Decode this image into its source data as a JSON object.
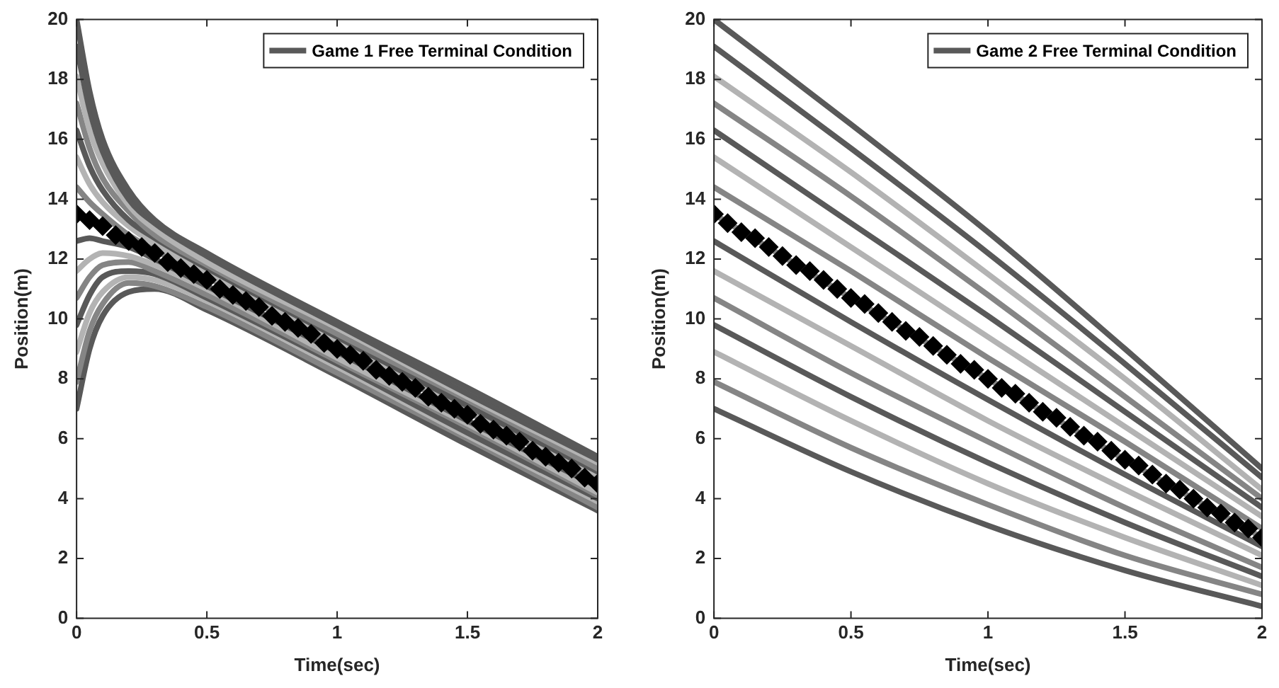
{
  "chart_data": [
    {
      "type": "line",
      "xlabel": "Time(sec)",
      "ylabel": "Position(m)",
      "x": [
        0,
        0.05,
        0.1,
        0.2,
        0.3,
        0.5,
        1,
        1.5,
        2
      ],
      "xlim": [
        0,
        2
      ],
      "xticks": [
        0,
        0.5,
        1,
        1.5,
        2
      ],
      "ylim": [
        0,
        20
      ],
      "yticks": [
        0,
        2,
        4,
        6,
        8,
        10,
        12,
        14,
        16,
        18,
        20
      ],
      "legend": "top right",
      "marker": "none",
      "line_style": "solid",
      "series": [
        {
          "name": "Game 1 Free Terminal Condition",
          "color": "#595959",
          "values": [
            20,
            17.6,
            16.0,
            14.3,
            13.3,
            12.2,
            9.9,
            7.7,
            5.4
          ]
        },
        {
          "color": "#595959",
          "values": [
            19.1,
            17.0,
            15.6,
            14.0,
            13.2,
            12.1,
            9.8,
            7.5,
            5.3
          ]
        },
        {
          "color": "#b3b3b3",
          "values": [
            18.1,
            16.3,
            15.2,
            13.8,
            13.0,
            11.9,
            9.7,
            7.4,
            5.2
          ]
        },
        {
          "color": "#858585",
          "values": [
            17.2,
            15.7,
            14.7,
            13.6,
            12.8,
            11.8,
            9.5,
            7.3,
            5.0
          ]
        },
        {
          "color": "#595959",
          "values": [
            16.3,
            15.1,
            14.3,
            13.3,
            12.7,
            11.7,
            9.4,
            7.1,
            4.9
          ]
        },
        {
          "color": "#b3b3b3",
          "values": [
            15.4,
            14.5,
            13.9,
            13.1,
            12.5,
            11.5,
            9.3,
            7.0,
            4.8
          ]
        },
        {
          "color": "#858585",
          "values": [
            14.4,
            13.9,
            13.5,
            12.8,
            12.3,
            11.4,
            9.1,
            6.9,
            4.6
          ]
        },
        {
          "color": "#595959",
          "values": [
            12.6,
            12.7,
            12.6,
            12.4,
            12.0,
            11.1,
            8.9,
            6.6,
            4.4
          ]
        },
        {
          "color": "#b3b3b3",
          "values": [
            11.6,
            12.0,
            12.2,
            12.1,
            11.8,
            11.0,
            8.7,
            6.5,
            4.2
          ]
        },
        {
          "color": "#858585",
          "values": [
            10.7,
            11.4,
            11.8,
            11.9,
            11.6,
            10.8,
            8.6,
            6.4,
            4.1
          ]
        },
        {
          "color": "#595959",
          "values": [
            9.8,
            10.8,
            11.4,
            11.6,
            11.5,
            10.7,
            8.5,
            6.2,
            4.0
          ]
        },
        {
          "color": "#b3b3b3",
          "values": [
            8.9,
            10.2,
            10.9,
            11.4,
            11.3,
            10.6,
            8.4,
            6.1,
            3.9
          ]
        },
        {
          "color": "#858585",
          "values": [
            7.9,
            9.6,
            10.5,
            11.2,
            11.1,
            10.4,
            8.2,
            6.0,
            3.7
          ]
        },
        {
          "color": "#595959",
          "values": [
            7.0,
            9.0,
            10.1,
            10.9,
            11.0,
            10.3,
            8.1,
            5.8,
            3.6
          ]
        },
        {
          "type": "scatter",
          "marker": "diamond",
          "color": "#000000",
          "x": [
            0,
            0.05,
            0.1,
            0.15,
            0.2,
            0.25,
            0.3,
            0.35,
            0.4,
            0.45,
            0.5,
            0.55,
            0.6,
            0.65,
            0.7,
            0.75,
            0.8,
            0.85,
            0.9,
            0.95,
            1,
            1.05,
            1.1,
            1.15,
            1.2,
            1.25,
            1.3,
            1.35,
            1.4,
            1.45,
            1.5,
            1.55,
            1.6,
            1.65,
            1.7,
            1.75,
            1.8,
            1.85,
            1.9,
            1.95,
            2
          ],
          "values": [
            13.5,
            13.3,
            13.1,
            12.8,
            12.6,
            12.4,
            12.2,
            11.9,
            11.7,
            11.5,
            11.3,
            11.0,
            10.8,
            10.6,
            10.4,
            10.1,
            9.9,
            9.7,
            9.5,
            9.2,
            9.0,
            8.8,
            8.6,
            8.3,
            8.1,
            7.9,
            7.7,
            7.4,
            7.2,
            7.0,
            6.8,
            6.5,
            6.3,
            6.1,
            5.9,
            5.6,
            5.4,
            5.2,
            5.0,
            4.7,
            4.5
          ]
        }
      ]
    },
    {
      "type": "line",
      "xlabel": "Time(sec)",
      "ylabel": "Position(m)",
      "x": [
        0,
        0.5,
        1,
        1.5,
        2
      ],
      "xlim": [
        0,
        2
      ],
      "xticks": [
        0,
        0.5,
        1,
        1.5,
        2
      ],
      "ylim": [
        0,
        20
      ],
      "yticks": [
        0,
        2,
        4,
        6,
        8,
        10,
        12,
        14,
        16,
        18,
        20
      ],
      "legend": "top right",
      "marker": "none",
      "line_style": "solid",
      "series": [
        {
          "name": "Game 2 Free Terminal Condition",
          "color": "#595959",
          "values": [
            20,
            16.5,
            12.9,
            9.0,
            5.0
          ]
        },
        {
          "color": "#595959",
          "values": [
            19.1,
            15.7,
            12.2,
            8.5,
            4.7
          ]
        },
        {
          "color": "#b3b3b3",
          "values": [
            18.1,
            14.9,
            11.5,
            8.0,
            4.3
          ]
        },
        {
          "color": "#858585",
          "values": [
            17.2,
            14.1,
            10.8,
            7.4,
            4.0
          ]
        },
        {
          "color": "#595959",
          "values": [
            16.3,
            13.2,
            10.1,
            6.9,
            3.7
          ]
        },
        {
          "color": "#b3b3b3",
          "values": [
            15.4,
            12.4,
            9.4,
            6.4,
            3.4
          ]
        },
        {
          "color": "#858585",
          "values": [
            14.4,
            11.6,
            8.7,
            5.9,
            3.0
          ]
        },
        {
          "color": "#858585",
          "values": [
            13.5,
            10.7,
            8.0,
            5.3,
            2.7
          ]
        },
        {
          "color": "#595959",
          "values": [
            12.6,
            9.9,
            7.3,
            4.8,
            2.4
          ]
        },
        {
          "color": "#b3b3b3",
          "values": [
            11.6,
            9.1,
            6.6,
            4.3,
            2.1
          ]
        },
        {
          "color": "#858585",
          "values": [
            10.7,
            8.2,
            5.9,
            3.7,
            1.7
          ]
        },
        {
          "color": "#595959",
          "values": [
            9.8,
            7.4,
            5.2,
            3.2,
            1.4
          ]
        },
        {
          "color": "#b3b3b3",
          "values": [
            8.9,
            6.6,
            4.5,
            2.7,
            1.1
          ]
        },
        {
          "color": "#858585",
          "values": [
            7.9,
            5.7,
            3.8,
            2.1,
            0.8
          ]
        },
        {
          "color": "#595959",
          "values": [
            7.0,
            4.9,
            3.1,
            1.6,
            0.4
          ]
        },
        {
          "type": "scatter",
          "marker": "diamond",
          "color": "#000000",
          "x": [
            0,
            0.05,
            0.1,
            0.15,
            0.2,
            0.25,
            0.3,
            0.35,
            0.4,
            0.45,
            0.5,
            0.55,
            0.6,
            0.65,
            0.7,
            0.75,
            0.8,
            0.85,
            0.9,
            0.95,
            1,
            1.05,
            1.1,
            1.15,
            1.2,
            1.25,
            1.3,
            1.35,
            1.4,
            1.45,
            1.5,
            1.55,
            1.6,
            1.65,
            1.7,
            1.75,
            1.8,
            1.85,
            1.9,
            1.95,
            2
          ],
          "values": [
            13.5,
            13.2,
            12.9,
            12.7,
            12.4,
            12.1,
            11.8,
            11.6,
            11.3,
            11.0,
            10.7,
            10.5,
            10.2,
            9.9,
            9.6,
            9.4,
            9.1,
            8.8,
            8.5,
            8.3,
            8.0,
            7.7,
            7.5,
            7.2,
            6.9,
            6.7,
            6.4,
            6.1,
            5.9,
            5.6,
            5.3,
            5.1,
            4.8,
            4.5,
            4.3,
            4.0,
            3.7,
            3.5,
            3.2,
            3.0,
            2.7
          ]
        }
      ]
    }
  ]
}
